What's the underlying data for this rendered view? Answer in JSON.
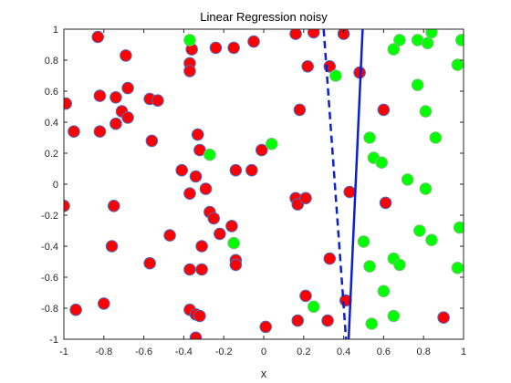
{
  "chart_data": {
    "type": "scatter",
    "title": "Linear Regression noisy",
    "xlabel": "x",
    "ylabel": "",
    "xlim": [
      -1,
      1
    ],
    "ylim": [
      -1,
      1
    ],
    "grid": false,
    "xticks": [
      -1,
      -0.8,
      -0.6,
      -0.4,
      -0.2,
      0,
      0.2,
      0.4,
      0.6,
      0.8,
      1
    ],
    "xtick_labels": [
      "-1",
      "-0.8",
      "-0.6",
      "-0.4",
      "-0.2",
      "0",
      "0.2",
      "0.4",
      "0.6",
      "0.8",
      "1"
    ],
    "yticks": [
      -1,
      -0.8,
      -0.6,
      -0.4,
      -0.2,
      0,
      0.2,
      0.4,
      0.6,
      0.8,
      1
    ],
    "ytick_labels": [
      "-1",
      "-0.8",
      "-0.6",
      "-0.4",
      "-0.2",
      "0",
      "0.2",
      "0.4",
      "0.6",
      "0.8",
      "1"
    ],
    "series": [
      {
        "marker": "circle",
        "fill_color": "#ff0000",
        "edge_color": "#4a6fc8",
        "points": [
          [
            -0.83,
            0.95
          ],
          [
            -0.99,
            0.52
          ],
          [
            -0.95,
            0.34
          ],
          [
            -0.82,
            0.57
          ],
          [
            -0.82,
            0.34
          ],
          [
            -0.74,
            0.39
          ],
          [
            -0.74,
            0.56
          ],
          [
            -0.71,
            0.47
          ],
          [
            -0.68,
            0.43
          ],
          [
            -0.68,
            0.62
          ],
          [
            -0.69,
            0.83
          ],
          [
            -0.57,
            0.55
          ],
          [
            -0.53,
            0.54
          ],
          [
            -0.56,
            0.28
          ],
          [
            -0.36,
            0.87
          ],
          [
            -0.37,
            0.78
          ],
          [
            -0.37,
            0.73
          ],
          [
            -0.24,
            0.88
          ],
          [
            -0.15,
            0.88
          ],
          [
            -0.05,
            0.92
          ],
          [
            -0.33,
            0.32
          ],
          [
            -0.32,
            0.22
          ],
          [
            -0.41,
            0.09
          ],
          [
            -0.34,
            0.05
          ],
          [
            -0.14,
            0.09
          ],
          [
            -0.06,
            0.09
          ],
          [
            -0.01,
            0.22
          ],
          [
            -0.37,
            -0.06
          ],
          [
            -0.29,
            -0.03
          ],
          [
            -0.27,
            -0.18
          ],
          [
            -0.25,
            -0.22
          ],
          [
            -0.22,
            -0.32
          ],
          [
            -0.31,
            -0.4
          ],
          [
            -0.16,
            -0.27
          ],
          [
            -0.14,
            -0.49
          ],
          [
            -0.14,
            -0.52
          ],
          [
            -0.37,
            -0.55
          ],
          [
            -0.31,
            -0.55
          ],
          [
            -0.47,
            -0.33
          ],
          [
            -0.57,
            -0.51
          ],
          [
            -0.76,
            -0.4
          ],
          [
            -0.75,
            -0.14
          ],
          [
            -1.0,
            -0.14
          ],
          [
            -0.94,
            -0.81
          ],
          [
            -0.8,
            -0.77
          ],
          [
            -0.37,
            -0.81
          ],
          [
            -0.34,
            -0.84
          ],
          [
            -0.32,
            -0.85
          ],
          [
            -0.34,
            -0.99
          ],
          [
            0.01,
            -0.92
          ],
          [
            0.17,
            -0.88
          ],
          [
            0.21,
            -0.72
          ],
          [
            0.16,
            -0.09
          ],
          [
            0.17,
            -0.13
          ],
          [
            0.21,
            -0.09
          ],
          [
            0.18,
            0.48
          ],
          [
            0.22,
            0.76
          ],
          [
            0.16,
            0.97
          ],
          [
            0.25,
            0.98
          ],
          [
            0.33,
            0.76
          ],
          [
            0.4,
            0.97
          ],
          [
            0.48,
            0.72
          ],
          [
            0.33,
            -0.48
          ],
          [
            0.43,
            -0.05
          ],
          [
            0.41,
            -0.75
          ],
          [
            0.32,
            -0.88
          ],
          [
            0.6,
            0.48
          ],
          [
            0.61,
            -0.12
          ],
          [
            0.9,
            -0.86
          ]
        ]
      },
      {
        "marker": "circle",
        "fill_color": "#00ff00",
        "edge_color": "#7fbf7f",
        "points": [
          [
            -0.37,
            0.93
          ],
          [
            0.04,
            0.26
          ],
          [
            -0.27,
            0.19
          ],
          [
            -0.15,
            -0.38
          ],
          [
            0.36,
            0.7
          ],
          [
            0.53,
            0.3
          ],
          [
            0.55,
            0.17
          ],
          [
            0.59,
            0.14
          ],
          [
            0.5,
            -0.37
          ],
          [
            0.53,
            -0.53
          ],
          [
            0.25,
            -0.79
          ],
          [
            0.54,
            -0.9
          ],
          [
            0.6,
            -0.69
          ],
          [
            0.65,
            -0.48
          ],
          [
            0.68,
            -0.52
          ],
          [
            0.65,
            -0.85
          ],
          [
            0.68,
            0.93
          ],
          [
            0.65,
            0.87
          ],
          [
            0.72,
            0.03
          ],
          [
            0.77,
            0.93
          ],
          [
            0.82,
            0.91
          ],
          [
            0.84,
            0.98
          ],
          [
            0.77,
            0.64
          ],
          [
            0.81,
            0.47
          ],
          [
            0.86,
            0.3
          ],
          [
            0.81,
            -0.03
          ],
          [
            0.78,
            -0.3
          ],
          [
            0.84,
            -0.36
          ],
          [
            0.99,
            0.93
          ],
          [
            0.97,
            0.77
          ],
          [
            0.98,
            -0.28
          ],
          [
            0.97,
            -0.54
          ]
        ]
      }
    ],
    "lines": [
      {
        "style": "solid",
        "color": "#0b1fd0",
        "points": [
          [
            0.425,
            -1.0
          ],
          [
            0.495,
            1.0
          ]
        ]
      },
      {
        "style": "dashed",
        "color": "#0b1fd0",
        "points": [
          [
            0.3,
            1.0
          ],
          [
            0.412,
            -1.0
          ]
        ]
      }
    ]
  }
}
